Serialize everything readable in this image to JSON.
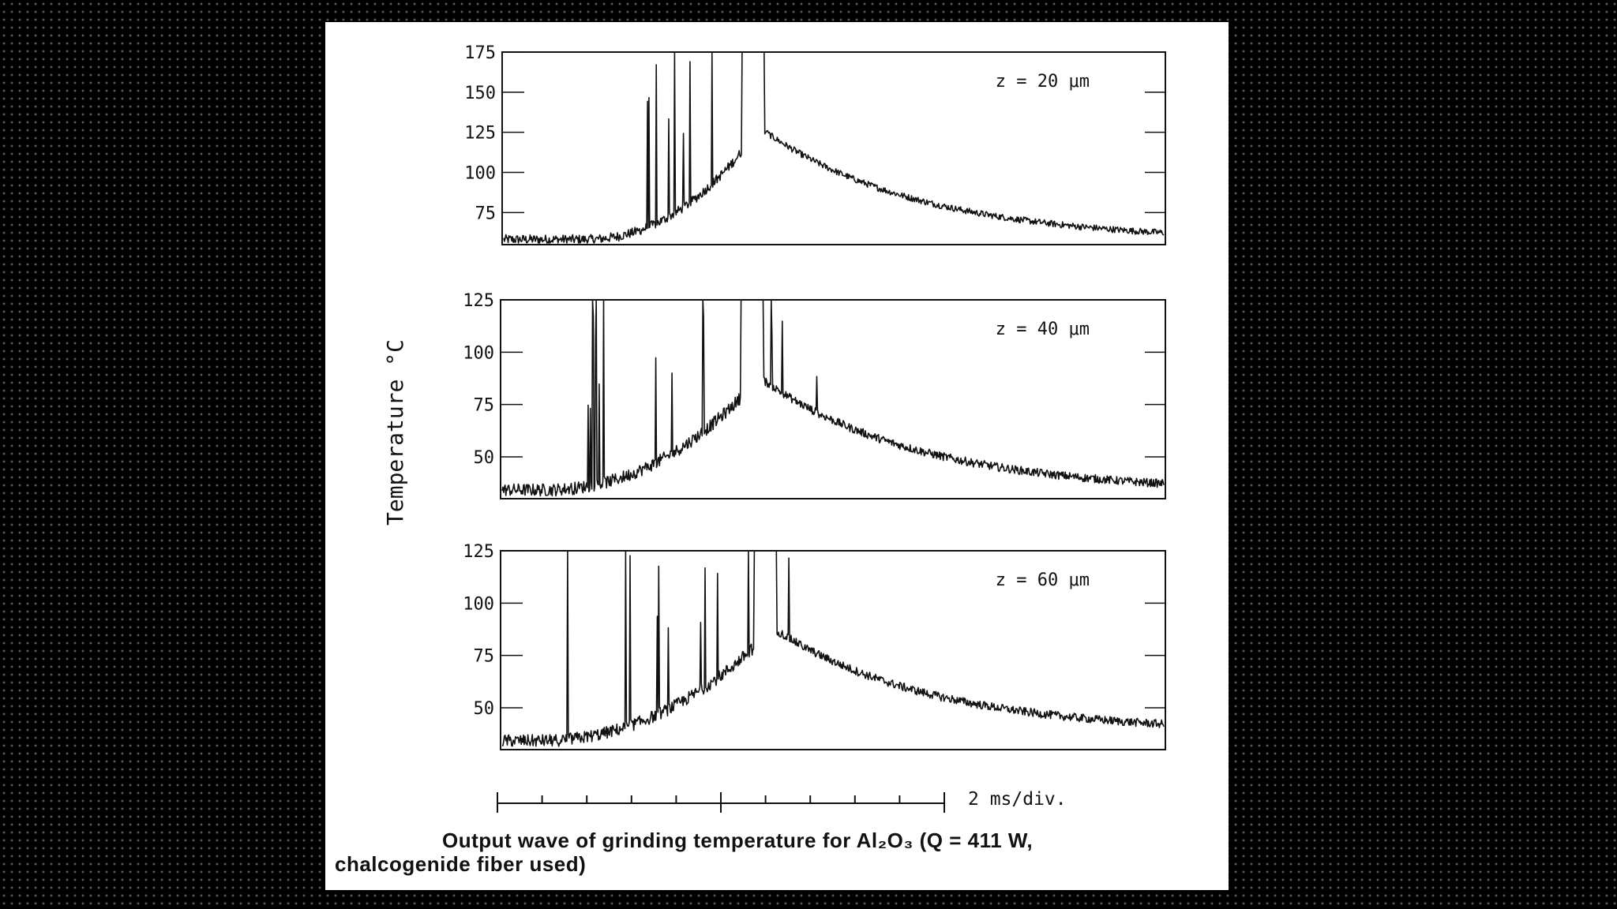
{
  "chart_data": {
    "type": "line",
    "ylabel": "Temperature °C",
    "x_scale_label": "2 ms/div.",
    "caption_line1": "Output wave of grinding temperature for Al₂O₃ (Q = 411 W,",
    "caption_line2": "chalcogenide fiber used)",
    "panels": [
      {
        "label": "z = 20 μm",
        "yticks": [
          75,
          100,
          125,
          150,
          175
        ],
        "ylim": [
          55,
          175
        ],
        "baseline": 57,
        "peak": 175,
        "peak_x": 0.38,
        "spike_region": [
          0.2,
          0.4
        ],
        "decay_end": 57
      },
      {
        "label": "z = 40 μm",
        "yticks": [
          50,
          75,
          100,
          125
        ],
        "ylim": [
          30,
          125
        ],
        "baseline": 33,
        "peak": 125,
        "peak_x": 0.38,
        "spike_region": [
          0.1,
          0.48
        ],
        "decay_end": 33
      },
      {
        "label": "z = 60 μm",
        "yticks": [
          50,
          75,
          100,
          125
        ],
        "ylim": [
          30,
          125
        ],
        "baseline": 33,
        "peak": 125,
        "peak_x": 0.4,
        "spike_region": [
          0.08,
          0.46
        ],
        "decay_end": 38
      }
    ]
  }
}
